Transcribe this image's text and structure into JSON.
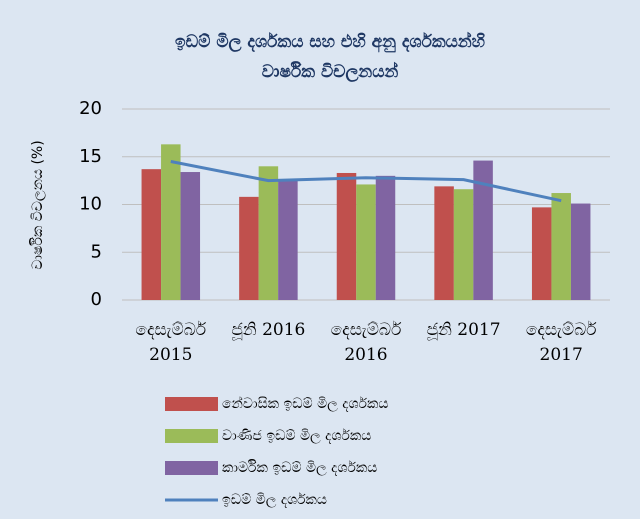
{
  "chart_data": {
    "type": "bar",
    "title_lines": [
      "ඉඩම් මිල දර්ශකය සහ එහි අනු දර්ශකයන්හි",
      "වාර්ෂික විචලනයන්"
    ],
    "ylabel": "වාර්ෂික විචලනය (%)",
    "categories": [
      "දෙසැම්බර් 2015",
      "ජූනි 2016",
      "දෙසැම්බර් 2016",
      "ජූනි 2017",
      "දෙසැම්බර් 2017"
    ],
    "series": [
      {
        "name": "නේවාසික  ඉඩම් මිල දර්ශකය",
        "type": "bar",
        "color": "#c0504d",
        "values": [
          13.7,
          10.8,
          13.3,
          11.9,
          9.7
        ]
      },
      {
        "name": "වාණිජ  ඉඩම් මිල දර්ශකය",
        "type": "bar",
        "color": "#9bbb59",
        "values": [
          16.3,
          14.0,
          12.1,
          11.6,
          11.2
        ]
      },
      {
        "name": "කාර්මික  ඉඩම් මිල දර්ශකය",
        "type": "bar",
        "color": "#8064a2",
        "values": [
          13.4,
          12.5,
          13.0,
          14.6,
          10.1
        ]
      },
      {
        "name": "ඉඩම් මිල දර්ශකය",
        "type": "line",
        "color": "#4f81bd",
        "values": [
          14.5,
          12.5,
          12.8,
          12.6,
          10.4
        ]
      }
    ],
    "ylim": [
      0,
      20
    ],
    "yticks": [
      0,
      5,
      10,
      15,
      20
    ],
    "grid": true,
    "legend": "bottom"
  }
}
